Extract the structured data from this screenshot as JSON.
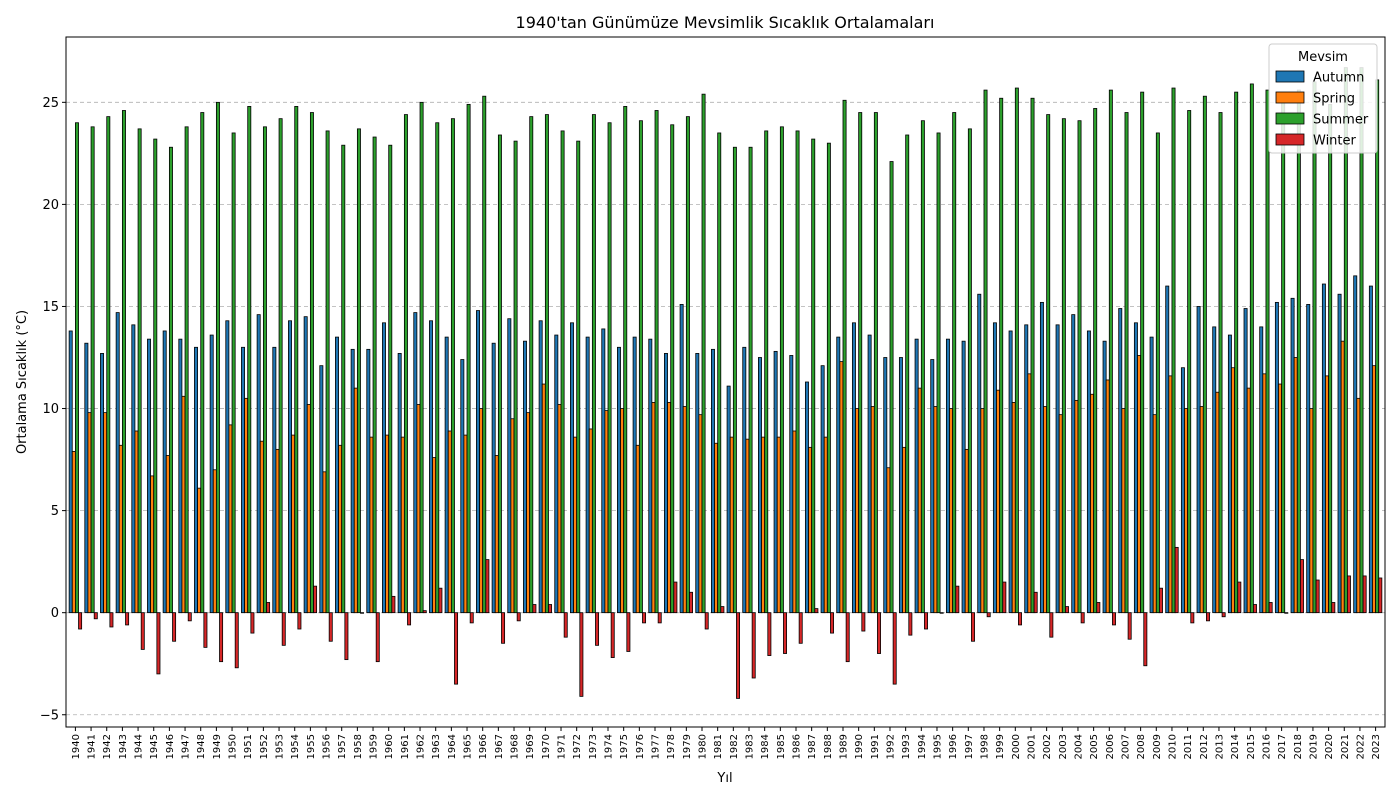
{
  "chart_data": {
    "type": "bar",
    "title": "1940'tan Günümüze Mevsimlik Sıcaklık Ortalamaları",
    "xlabel": "Yıl",
    "ylabel": "Ortalama Sıcaklık (°C)",
    "ylim": [
      -5.6,
      28.2
    ],
    "yticks": [
      -5,
      0,
      5,
      10,
      15,
      20,
      25
    ],
    "ytick_labels": [
      "−5",
      "0",
      "5",
      "10",
      "15",
      "20",
      "25"
    ],
    "grid": "y-dashed",
    "legend": {
      "title": "Mevsim",
      "position": "top-right"
    },
    "categories": [
      "1940",
      "1941",
      "1942",
      "1943",
      "1944",
      "1945",
      "1946",
      "1947",
      "1948",
      "1949",
      "1950",
      "1951",
      "1952",
      "1953",
      "1954",
      "1955",
      "1956",
      "1957",
      "1958",
      "1959",
      "1960",
      "1961",
      "1962",
      "1963",
      "1964",
      "1965",
      "1966",
      "1967",
      "1968",
      "1969",
      "1970",
      "1971",
      "1972",
      "1973",
      "1974",
      "1975",
      "1976",
      "1977",
      "1978",
      "1979",
      "1980",
      "1981",
      "1982",
      "1983",
      "1984",
      "1985",
      "1986",
      "1987",
      "1988",
      "1989",
      "1990",
      "1991",
      "1992",
      "1993",
      "1994",
      "1995",
      "1996",
      "1997",
      "1998",
      "1999",
      "2000",
      "2001",
      "2002",
      "2003",
      "2004",
      "2005",
      "2006",
      "2007",
      "2008",
      "2009",
      "2010",
      "2011",
      "2012",
      "2013",
      "2014",
      "2015",
      "2016",
      "2017",
      "2018",
      "2019",
      "2020",
      "2021",
      "2022",
      "2023"
    ],
    "series": [
      {
        "name": "Autumn",
        "color": "#1f77b4",
        "values": [
          13.8,
          13.2,
          12.7,
          14.7,
          14.1,
          13.4,
          13.8,
          13.4,
          13.0,
          13.6,
          14.3,
          13.0,
          14.6,
          13.0,
          14.3,
          14.5,
          12.1,
          13.5,
          12.9,
          12.9,
          14.2,
          12.7,
          14.7,
          14.3,
          13.5,
          12.4,
          14.8,
          13.2,
          14.4,
          13.3,
          14.3,
          13.6,
          14.2,
          13.5,
          13.9,
          13.0,
          13.5,
          13.4,
          12.7,
          15.1,
          12.7,
          12.9,
          11.1,
          13.0,
          12.5,
          12.8,
          12.6,
          11.3,
          12.1,
          13.5,
          14.2,
          13.6,
          12.5,
          12.5,
          13.4,
          12.4,
          13.4,
          13.3,
          15.6,
          14.2,
          13.8,
          14.1,
          15.2,
          14.1,
          14.6,
          13.8,
          13.3,
          14.9,
          14.2,
          13.5,
          16.0,
          12.0,
          15.0,
          14.0,
          13.6,
          14.9,
          14.0,
          15.2,
          15.4,
          15.1,
          16.1,
          15.6,
          16.5,
          16.0
        ]
      },
      {
        "name": "Spring",
        "color": "#ff7f0e",
        "values": [
          7.9,
          9.8,
          9.8,
          8.2,
          8.9,
          6.7,
          7.7,
          10.6,
          6.1,
          7.0,
          9.2,
          10.5,
          8.4,
          8.0,
          8.7,
          10.2,
          6.9,
          8.2,
          11.0,
          8.6,
          8.7,
          8.6,
          10.2,
          7.6,
          8.9,
          8.7,
          10.0,
          7.7,
          9.5,
          9.8,
          11.2,
          10.2,
          8.6,
          9.0,
          9.9,
          10.0,
          8.2,
          10.3,
          10.3,
          10.1,
          9.7,
          8.3,
          8.6,
          8.5,
          8.6,
          8.6,
          8.9,
          8.1,
          8.6,
          12.3,
          10.0,
          10.1,
          7.1,
          8.1,
          11.0,
          10.1,
          10.0,
          8.0,
          10.0,
          10.9,
          10.3,
          11.7,
          10.1,
          9.7,
          10.4,
          10.7,
          11.4,
          10.0,
          12.6,
          9.7,
          11.6,
          10.0,
          10.1,
          10.8,
          12.0,
          11.0,
          11.7,
          11.2,
          12.5,
          10.0,
          11.6,
          13.3,
          10.5,
          12.1
        ]
      },
      {
        "name": "Summer",
        "color": "#2ca02c",
        "values": [
          24.0,
          23.8,
          24.3,
          24.6,
          23.7,
          23.2,
          22.8,
          23.8,
          24.5,
          25.0,
          23.5,
          24.8,
          23.8,
          24.2,
          24.8,
          24.5,
          23.6,
          22.9,
          23.7,
          23.3,
          22.9,
          24.4,
          25.0,
          24.0,
          24.2,
          24.9,
          25.3,
          23.4,
          23.1,
          24.3,
          24.4,
          23.6,
          23.1,
          24.4,
          24.0,
          24.8,
          24.1,
          24.6,
          23.9,
          24.3,
          25.4,
          23.5,
          22.8,
          22.8,
          23.6,
          23.8,
          23.6,
          23.2,
          23.0,
          25.1,
          24.5,
          24.5,
          22.1,
          23.4,
          24.1,
          23.5,
          24.5,
          23.7,
          25.6,
          25.2,
          25.7,
          25.2,
          24.4,
          24.2,
          24.1,
          24.7,
          25.6,
          24.5,
          25.5,
          23.5,
          25.7,
          24.6,
          25.3,
          24.5,
          25.5,
          25.9,
          25.6,
          25.2,
          25.6,
          26.0,
          24.9,
          26.7,
          26.7,
          26.1
        ]
      },
      {
        "name": "Winter",
        "color": "#d62728",
        "values": [
          -0.8,
          -0.3,
          -0.7,
          -0.6,
          -1.8,
          -3.0,
          -1.4,
          -0.4,
          -1.7,
          -2.4,
          -2.7,
          -1.0,
          0.5,
          -1.6,
          -0.8,
          1.3,
          -1.4,
          -2.3,
          0.0,
          -2.4,
          0.8,
          -0.6,
          0.1,
          1.2,
          -3.5,
          -0.5,
          2.6,
          -1.5,
          -0.4,
          0.4,
          0.4,
          -1.2,
          -4.1,
          -1.6,
          -2.2,
          -1.9,
          -0.5,
          -0.5,
          1.5,
          1.0,
          -0.8,
          0.3,
          -4.2,
          -3.2,
          -2.1,
          -2.0,
          -1.5,
          0.2,
          -1.0,
          -2.4,
          -0.9,
          -2.0,
          -3.5,
          -1.1,
          -0.8,
          0.0,
          1.3,
          -1.4,
          -0.2,
          1.5,
          -0.6,
          1.0,
          -1.2,
          0.3,
          -0.5,
          0.5,
          -0.6,
          -1.3,
          -2.6,
          1.2,
          3.2,
          -0.5,
          -0.4,
          -0.2,
          1.5,
          0.4,
          0.5,
          0.0,
          2.6,
          1.6,
          0.5,
          1.8,
          1.8,
          1.7
        ]
      }
    ]
  }
}
